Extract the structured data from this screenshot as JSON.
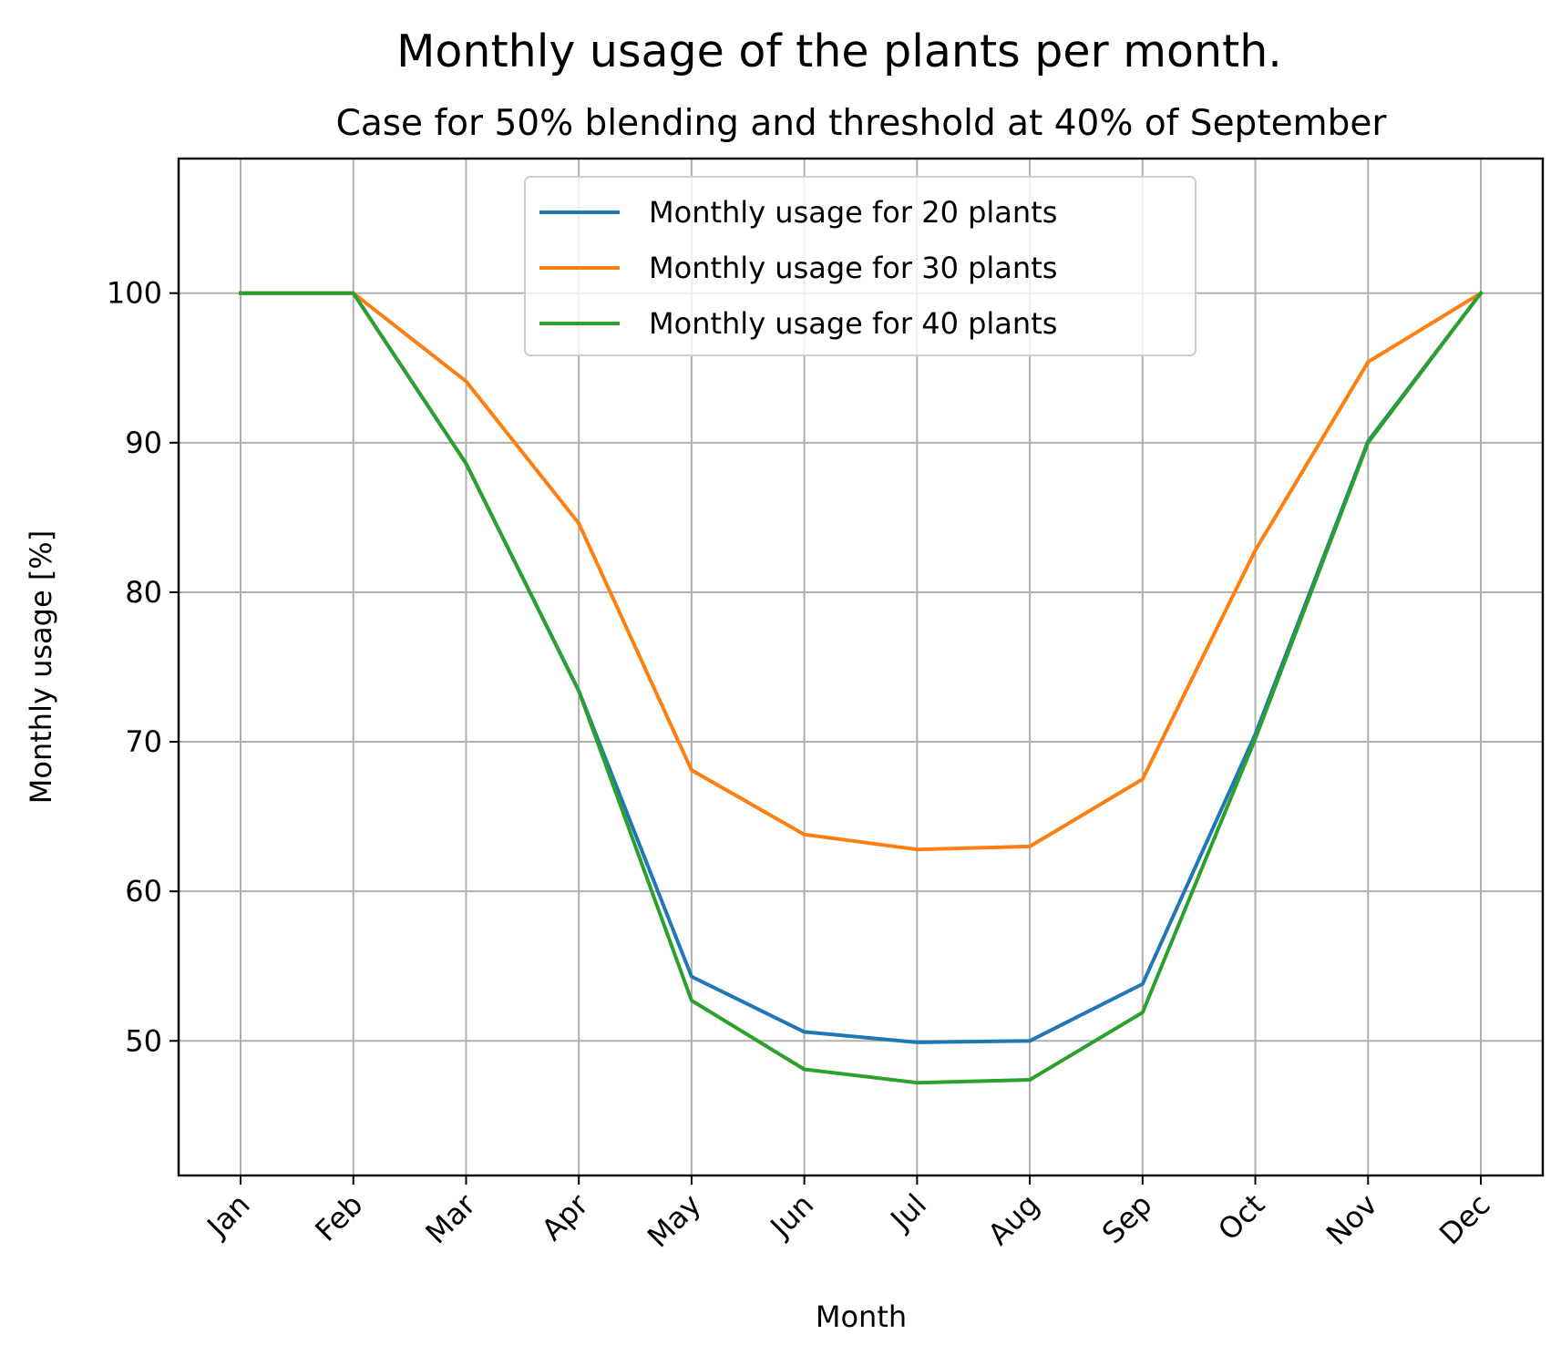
{
  "chart_data": {
    "type": "line",
    "title": "Monthly usage of the plants per month.",
    "subtitle": "Case for 50% blending and threshold at 40% of September",
    "xlabel": "Month",
    "ylabel": "Monthly usage [%]",
    "categories": [
      "Jan",
      "Feb",
      "Mar",
      "Apr",
      "May",
      "Jun",
      "Jul",
      "Aug",
      "Sep",
      "Oct",
      "Nov",
      "Dec"
    ],
    "ylim": [
      41,
      109
    ],
    "yticks": [
      50,
      60,
      70,
      80,
      90,
      100
    ],
    "grid": true,
    "legend_position": "top-center",
    "series": [
      {
        "name": "Monthly usage for 20 plants",
        "color": "#1f77b4",
        "values": [
          100,
          100,
          88.6,
          73.4,
          54.3,
          50.6,
          49.9,
          50.0,
          53.8,
          70.5,
          90.1,
          100
        ]
      },
      {
        "name": "Monthly usage for 30 plants",
        "color": "#ff7f0e",
        "values": [
          100,
          100,
          94.1,
          84.6,
          68.1,
          63.8,
          62.8,
          63.0,
          67.5,
          82.8,
          95.4,
          100
        ]
      },
      {
        "name": "Monthly usage for 40 plants",
        "color": "#2ca02c",
        "values": [
          100,
          100,
          88.6,
          73.4,
          52.7,
          48.1,
          47.2,
          47.4,
          51.9,
          70.2,
          90.0,
          100
        ]
      }
    ]
  }
}
